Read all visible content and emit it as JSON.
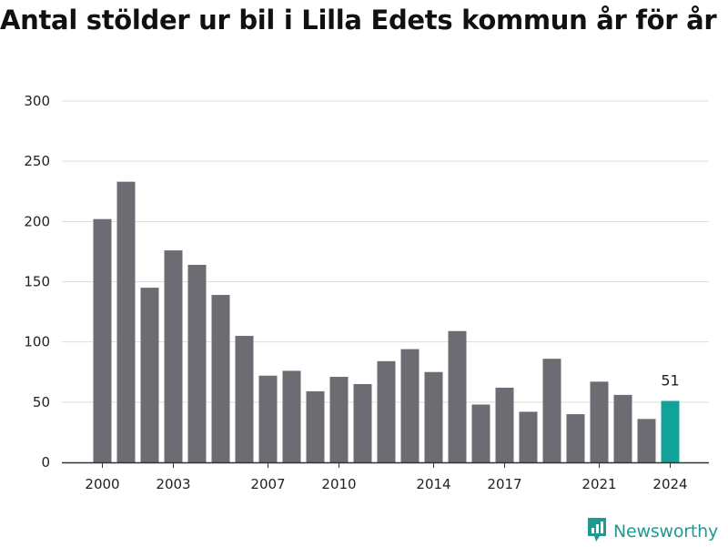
{
  "chart_data": {
    "type": "bar",
    "title": "Antal stölder ur bil i Lilla Edets kommun år för år",
    "categories": [
      "2000",
      "2001",
      "2002",
      "2003",
      "2004",
      "2005",
      "2006",
      "2007",
      "2008",
      "2009",
      "2010",
      "2011",
      "2012",
      "2013",
      "2014",
      "2015",
      "2016",
      "2017",
      "2018",
      "2019",
      "2020",
      "2021",
      "2022",
      "2023",
      "2024"
    ],
    "values": [
      202,
      233,
      145,
      176,
      164,
      139,
      105,
      72,
      76,
      59,
      71,
      65,
      84,
      94,
      75,
      109,
      48,
      62,
      42,
      86,
      40,
      67,
      56,
      36,
      51
    ],
    "x_tick_labels": [
      "2000",
      "2003",
      "2007",
      "2010",
      "2014",
      "2017",
      "2021",
      "2024"
    ],
    "y_ticks": [
      0,
      50,
      100,
      150,
      200,
      250,
      300
    ],
    "ylim": [
      0,
      300
    ],
    "xlabel": "",
    "ylabel": "",
    "grid": true,
    "highlight": {
      "category": "2024",
      "label": "51"
    },
    "colors": {
      "bar": "#6e6c73",
      "highlight": "#11a39a",
      "grid": "#dddddd",
      "axis": "#333333"
    }
  },
  "brand": {
    "name": "Newsworthy",
    "icon": "newsworthy-chart-icon",
    "color": "#1f9a90"
  }
}
